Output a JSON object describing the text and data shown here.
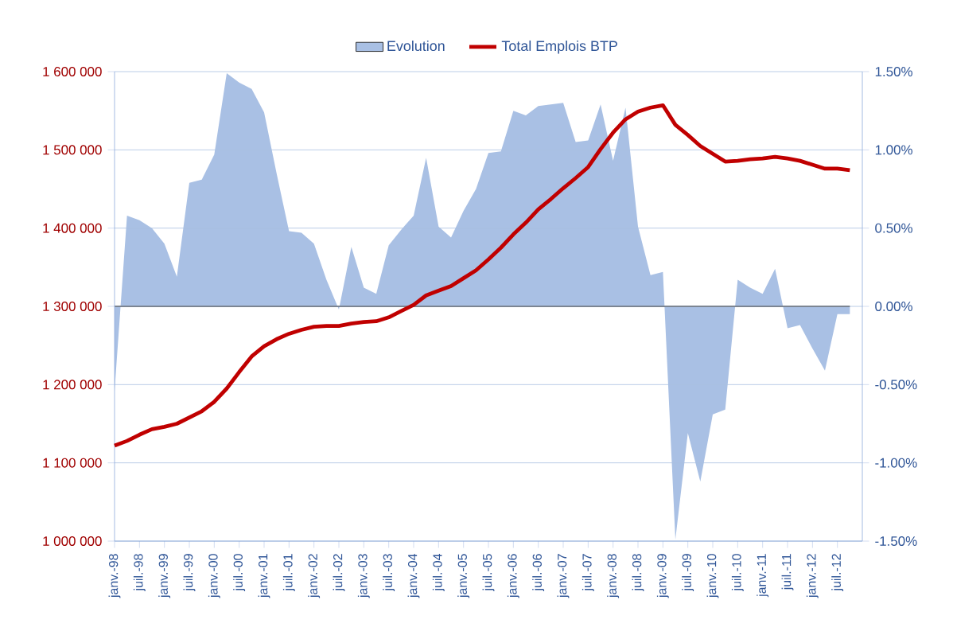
{
  "chart_data": {
    "type": "line",
    "categories": [
      "janv.-98",
      null,
      "juil.-98",
      null,
      "janv.-99",
      null,
      "juil.-99",
      null,
      "janv.-00",
      null,
      "juil.-00",
      null,
      "janv.-01",
      null,
      "juil.-01",
      null,
      "janv.-02",
      null,
      "juil.-02",
      null,
      "janv.-03",
      null,
      "juil.-03",
      null,
      "janv.-04",
      null,
      "juil.-04",
      null,
      "janv.-05",
      null,
      "juil.-05",
      null,
      "janv.-06",
      null,
      "juil.-06",
      null,
      "janv.-07",
      null,
      "juil.-07",
      null,
      "janv.-08",
      null,
      "juil.-08",
      null,
      "janv.-09",
      null,
      "juil.-09",
      null,
      "janv.-10",
      null,
      "juil.-10",
      null,
      "janv.-11",
      null,
      "juil.-11",
      null,
      "janv.-12",
      null,
      "juil.-12",
      null
    ],
    "series": [
      {
        "name": "Evolution",
        "type": "area",
        "axis": "y2",
        "color": "#a9c0e4",
        "values": [
          -0.54,
          0.58,
          0.55,
          0.5,
          0.4,
          0.19,
          0.79,
          0.81,
          0.97,
          1.49,
          1.43,
          1.39,
          1.24,
          0.85,
          0.48,
          0.47,
          0.4,
          0.17,
          -0.02,
          0.38,
          0.12,
          0.08,
          0.39,
          0.49,
          0.58,
          0.95,
          0.51,
          0.44,
          0.61,
          0.75,
          0.98,
          0.99,
          1.25,
          1.22,
          1.28,
          1.29,
          1.3,
          1.05,
          1.06,
          1.29,
          0.93,
          1.27,
          0.51,
          0.2,
          0.22,
          -1.49,
          -0.81,
          -1.12,
          -0.69,
          -0.66,
          0.17,
          0.12,
          0.08,
          0.24,
          -0.14,
          -0.12,
          -0.27,
          -0.41,
          -0.05,
          -0.05
        ]
      },
      {
        "name": "Total Emplois BTP",
        "color": "#c00000",
        "values": [
          1122000,
          1128000,
          1136000,
          1143000,
          1146000,
          1150000,
          1158000,
          1166000,
          1178000,
          1195000,
          1216000,
          1236000,
          1249000,
          1258000,
          1265000,
          1270000,
          1274000,
          1275000,
          1275000,
          1278000,
          1280000,
          1281000,
          1286000,
          1294000,
          1302000,
          1314000,
          1320000,
          1326000,
          1336000,
          1346000,
          1360000,
          1375000,
          1392000,
          1407000,
          1424000,
          1437000,
          1451000,
          1464000,
          1478000,
          1501000,
          1522000,
          1539000,
          1549000,
          1554000,
          1557000,
          1532000,
          1519000,
          1505000,
          1495000,
          1485000,
          1486000,
          1488000,
          1489000,
          1491000,
          1489000,
          1486000,
          1481000,
          1476000,
          1476000,
          1474000
        ]
      }
    ],
    "ylim": [
      1000000,
      1600000
    ],
    "yticks": [
      {
        "value": 1000000,
        "label": "1 000 000"
      },
      {
        "value": 1100000,
        "label": "1 100 000"
      },
      {
        "value": 1200000,
        "label": "1 200 000"
      },
      {
        "value": 1300000,
        "label": "1 300 000"
      },
      {
        "value": 1400000,
        "label": "1 400 000"
      },
      {
        "value": 1500000,
        "label": "1 500 000"
      },
      {
        "value": 1600000,
        "label": "1 600 000"
      }
    ],
    "y2lim": [
      -1.5,
      1.5
    ],
    "y2ticks": [
      {
        "value": -1.5,
        "label": "-1.50%"
      },
      {
        "value": -1.0,
        "label": "-1.00%"
      },
      {
        "value": -0.5,
        "label": "-0.50%"
      },
      {
        "value": 0,
        "label": "0.00%"
      },
      {
        "value": 0.5,
        "label": "0.50%"
      },
      {
        "value": 1.0,
        "label": "1.00%"
      },
      {
        "value": 1.5,
        "label": "1.50%"
      }
    ],
    "grid": "y",
    "legend": "top",
    "marker": "none",
    "ref_lines": [
      {
        "axis": "y2",
        "value": 0,
        "color": "#606060"
      }
    ]
  }
}
